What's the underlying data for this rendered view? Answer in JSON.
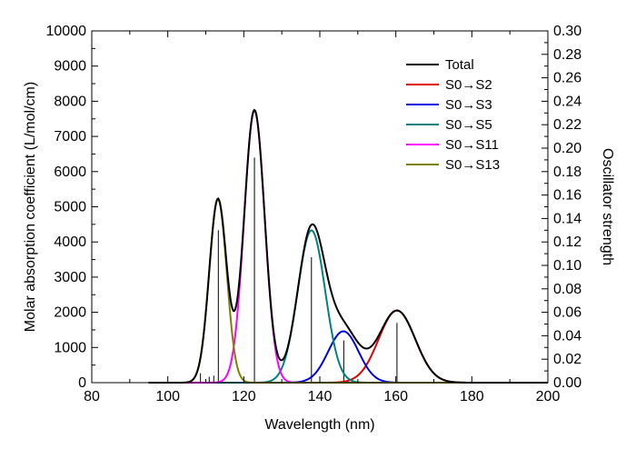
{
  "chart_data": {
    "type": "line",
    "xlabel": "Wavelength (nm)",
    "ylabel": "Molar absorption coefficient (L/mol/cm)",
    "y2label": "Oscillator strength",
    "xlim": [
      80,
      200
    ],
    "ylim": [
      0,
      10000
    ],
    "y2lim": [
      0,
      0.3
    ],
    "xticks": [
      "80",
      "100",
      "120",
      "140",
      "160",
      "180",
      "200"
    ],
    "xtick_values": [
      80,
      100,
      120,
      140,
      160,
      180,
      200
    ],
    "yticks": [
      "0",
      "1000",
      "2000",
      "3000",
      "4000",
      "5000",
      "6000",
      "7000",
      "8000",
      "9000",
      "10000"
    ],
    "ytick_values": [
      0,
      1000,
      2000,
      3000,
      4000,
      5000,
      6000,
      7000,
      8000,
      9000,
      10000
    ],
    "y2ticks": [
      "0.00",
      "0.02",
      "0.04",
      "0.06",
      "0.08",
      "0.10",
      "0.12",
      "0.14",
      "0.16",
      "0.18",
      "0.20",
      "0.22",
      "0.24",
      "0.26",
      "0.28",
      "0.30"
    ],
    "y2tick_values": [
      0,
      0.02,
      0.04,
      0.06,
      0.08,
      0.1,
      0.12,
      0.14,
      0.16,
      0.18,
      0.2,
      0.22,
      0.24,
      0.26,
      0.28,
      0.3
    ],
    "grid": false,
    "legend_position": "top-right",
    "series": [
      {
        "name": "Total",
        "color": "#000000",
        "peaks": []
      },
      {
        "name": "S0→S2",
        "color": "#e00000",
        "peaks": [
          {
            "center": 160.3,
            "height": 2050,
            "sigma": 4.8
          }
        ]
      },
      {
        "name": "S0→S3",
        "color": "#0000e0",
        "peaks": [
          {
            "center": 146.2,
            "height": 1460,
            "sigma": 4.0
          }
        ]
      },
      {
        "name": "S0→S5",
        "color": "#008080",
        "peaks": [
          {
            "center": 137.8,
            "height": 4330,
            "sigma": 3.6
          }
        ]
      },
      {
        "name": "S0→S11",
        "color": "#ff00ff",
        "peaks": [
          {
            "center": 122.8,
            "height": 7750,
            "sigma": 2.7
          }
        ]
      },
      {
        "name": "S0→S13",
        "color": "#808000",
        "peaks": [
          {
            "center": 113.2,
            "height": 5220,
            "sigma": 2.3
          }
        ]
      }
    ],
    "oscillator_strength_sticks": [
      {
        "x": 108.6,
        "f": 0.008
      },
      {
        "x": 110.9,
        "f": 0.005
      },
      {
        "x": 112.1,
        "f": 0.006
      },
      {
        "x": 113.3,
        "f": 0.13
      },
      {
        "x": 122.8,
        "f": 0.192
      },
      {
        "x": 137.8,
        "f": 0.107
      },
      {
        "x": 146.3,
        "f": 0.036
      },
      {
        "x": 160.3,
        "f": 0.051
      }
    ]
  }
}
